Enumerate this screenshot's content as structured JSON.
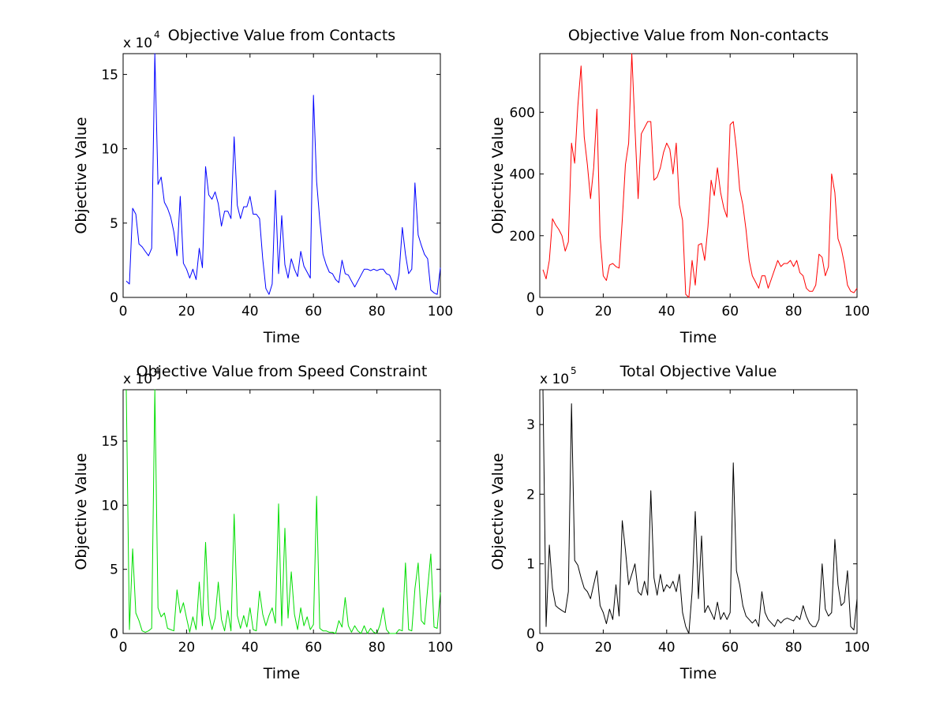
{
  "chart_data": [
    {
      "type": "line",
      "title": "Objective Value from Contacts",
      "xlabel": "Time",
      "ylabel": "Objective Value",
      "multiplier": {
        "prefix": "x 10",
        "exponent": "4"
      },
      "xlim": [
        0,
        100
      ],
      "ylim": [
        0,
        16.4
      ],
      "xticks": [
        0,
        20,
        40,
        60,
        80,
        100
      ],
      "xtick_labels": [
        "0",
        "20",
        "40",
        "60",
        "80",
        "100"
      ],
      "yticks": [
        0,
        5,
        10,
        15
      ],
      "ytick_labels": [
        "0",
        "5",
        "10",
        "15"
      ],
      "grid": false,
      "color": "#0000ff",
      "x": [
        1,
        2,
        3,
        4,
        5,
        6,
        7,
        8,
        9,
        10,
        11,
        12,
        13,
        14,
        15,
        16,
        17,
        18,
        19,
        20,
        21,
        22,
        23,
        24,
        25,
        26,
        27,
        28,
        29,
        30,
        31,
        32,
        33,
        34,
        35,
        36,
        37,
        38,
        39,
        40,
        41,
        42,
        43,
        44,
        45,
        46,
        47,
        48,
        49,
        50,
        51,
        52,
        53,
        54,
        55,
        56,
        57,
        58,
        59,
        60,
        61,
        62,
        63,
        64,
        65,
        66,
        67,
        68,
        69,
        70,
        71,
        72,
        73,
        74,
        75,
        76,
        77,
        78,
        79,
        80,
        81,
        82,
        83,
        84,
        85,
        86,
        87,
        88,
        89,
        90,
        91,
        92,
        93,
        94,
        95,
        96,
        97,
        98,
        99,
        100
      ],
      "values": [
        1.1,
        0.9,
        6.0,
        5.6,
        3.6,
        3.4,
        3.1,
        2.8,
        3.3,
        16.4,
        7.6,
        8.1,
        6.4,
        6.0,
        5.4,
        4.4,
        2.8,
        6.8,
        2.3,
        1.9,
        1.3,
        1.9,
        1.2,
        3.3,
        2.0,
        8.8,
        6.9,
        6.6,
        7.1,
        6.3,
        4.8,
        5.8,
        5.8,
        5.3,
        10.8,
        6.2,
        5.3,
        6.1,
        6.1,
        6.8,
        5.6,
        5.6,
        5.3,
        2.6,
        0.6,
        0.2,
        0.9,
        7.2,
        1.6,
        5.5,
        2.2,
        1.3,
        2.6,
        1.9,
        1.4,
        3.1,
        2.1,
        1.7,
        1.3,
        13.6,
        7.8,
        5.2,
        2.9,
        2.2,
        1.7,
        1.6,
        1.2,
        1.0,
        2.5,
        1.6,
        1.5,
        1.1,
        0.7,
        1.1,
        1.5,
        1.9,
        1.9,
        1.8,
        1.9,
        1.8,
        1.9,
        1.9,
        1.6,
        1.5,
        1.0,
        0.5,
        1.6,
        4.7,
        2.9,
        1.6,
        1.9,
        7.7,
        4.2,
        3.5,
        2.9,
        2.6,
        0.5,
        0.3,
        0.2,
        2.0
      ]
    },
    {
      "type": "line",
      "title": "Objective Value from Non-contacts",
      "xlabel": "Time",
      "ylabel": "Objective Value",
      "multiplier": null,
      "xlim": [
        0,
        100
      ],
      "ylim": [
        0,
        790
      ],
      "xticks": [
        0,
        20,
        40,
        60,
        80,
        100
      ],
      "xtick_labels": [
        "0",
        "20",
        "40",
        "60",
        "80",
        "100"
      ],
      "yticks": [
        0,
        200,
        400,
        600
      ],
      "ytick_labels": [
        "0",
        "200",
        "400",
        "600"
      ],
      "grid": false,
      "color": "#ff0000",
      "x": [
        1,
        2,
        3,
        4,
        5,
        6,
        7,
        8,
        9,
        10,
        11,
        12,
        13,
        14,
        15,
        16,
        17,
        18,
        19,
        20,
        21,
        22,
        23,
        24,
        25,
        26,
        27,
        28,
        29,
        30,
        31,
        32,
        33,
        34,
        35,
        36,
        37,
        38,
        39,
        40,
        41,
        42,
        43,
        44,
        45,
        46,
        47,
        48,
        49,
        50,
        51,
        52,
        53,
        54,
        55,
        56,
        57,
        58,
        59,
        60,
        61,
        62,
        63,
        64,
        65,
        66,
        67,
        68,
        69,
        70,
        71,
        72,
        73,
        74,
        75,
        76,
        77,
        78,
        79,
        80,
        81,
        82,
        83,
        84,
        85,
        86,
        87,
        88,
        89,
        90,
        91,
        92,
        93,
        94,
        95,
        96,
        97,
        98,
        99,
        100
      ],
      "values": [
        90,
        60,
        120,
        255,
        235,
        220,
        200,
        150,
        180,
        500,
        435,
        620,
        750,
        520,
        430,
        320,
        420,
        610,
        200,
        70,
        55,
        105,
        110,
        100,
        95,
        250,
        430,
        500,
        790,
        550,
        320,
        530,
        550,
        570,
        570,
        380,
        390,
        420,
        470,
        500,
        480,
        400,
        500,
        300,
        250,
        10,
        0,
        120,
        40,
        170,
        175,
        120,
        230,
        380,
        330,
        420,
        340,
        290,
        260,
        560,
        570,
        480,
        350,
        300,
        220,
        120,
        70,
        50,
        30,
        70,
        70,
        30,
        60,
        90,
        120,
        100,
        110,
        110,
        120,
        100,
        120,
        80,
        70,
        30,
        20,
        20,
        40,
        140,
        130,
        70,
        100,
        400,
        340,
        190,
        160,
        110,
        40,
        20,
        15,
        30
      ]
    },
    {
      "type": "line",
      "title": "Objective Value from Speed Constraint",
      "xlabel": "Time",
      "ylabel": "Objective Value",
      "multiplier": {
        "prefix": "x 10",
        "exponent": "4"
      },
      "xlim": [
        0,
        100
      ],
      "ylim": [
        0,
        19
      ],
      "xticks": [
        0,
        20,
        40,
        60,
        80,
        100
      ],
      "xtick_labels": [
        "0",
        "20",
        "40",
        "60",
        "80",
        "100"
      ],
      "yticks": [
        0,
        5,
        10,
        15
      ],
      "ytick_labels": [
        "0",
        "5",
        "10",
        "15"
      ],
      "grid": false,
      "color": "#00dd00",
      "x": [
        1,
        2,
        3,
        4,
        5,
        6,
        7,
        8,
        9,
        10,
        11,
        12,
        13,
        14,
        15,
        16,
        17,
        18,
        19,
        20,
        21,
        22,
        23,
        24,
        25,
        26,
        27,
        28,
        29,
        30,
        31,
        32,
        33,
        34,
        35,
        36,
        37,
        38,
        39,
        40,
        41,
        42,
        43,
        44,
        45,
        46,
        47,
        48,
        49,
        50,
        51,
        52,
        53,
        54,
        55,
        56,
        57,
        58,
        59,
        60,
        61,
        62,
        63,
        64,
        65,
        66,
        67,
        68,
        69,
        70,
        71,
        72,
        73,
        74,
        75,
        76,
        77,
        78,
        79,
        80,
        81,
        82,
        83,
        84,
        85,
        86,
        87,
        88,
        89,
        90,
        91,
        92,
        93,
        94,
        95,
        96,
        97,
        98,
        99,
        100
      ],
      "values": [
        19,
        0.3,
        6.6,
        1.6,
        1.0,
        0.2,
        0.1,
        0.2,
        0.4,
        19,
        2.0,
        1.3,
        1.6,
        0.4,
        0.3,
        0.2,
        3.4,
        1.6,
        2.4,
        1.2,
        0.1,
        1.3,
        0.3,
        4.0,
        0.6,
        7.1,
        1.5,
        0.3,
        1.2,
        4.0,
        1.1,
        0.2,
        1.8,
        0.2,
        9.3,
        1.4,
        0.4,
        1.4,
        0.5,
        2.0,
        0.3,
        0.2,
        3.3,
        1.5,
        0.6,
        1.4,
        2.0,
        0.8,
        10.1,
        0.6,
        8.2,
        1.2,
        4.8,
        1.5,
        0.3,
        2.0,
        0.6,
        1.3,
        0.3,
        0.7,
        10.7,
        0.4,
        0.2,
        0.2,
        0.1,
        0.1,
        0.0,
        1.0,
        0.5,
        2.8,
        0.6,
        0.1,
        0.6,
        0.2,
        0.0,
        0.6,
        0.0,
        0.4,
        0.1,
        0.0,
        0.7,
        2.0,
        0.3,
        0.0,
        0.0,
        0.0,
        0.3,
        0.2,
        5.5,
        0.3,
        0.2,
        3.5,
        5.5,
        1.0,
        0.7,
        3.5,
        6.2,
        0.5,
        0.4,
        3.2
      ]
    },
    {
      "type": "line",
      "title": "Total Objective Value",
      "xlabel": "Time",
      "ylabel": "Objective Value",
      "multiplier": {
        "prefix": "x 10",
        "exponent": "5"
      },
      "xlim": [
        0,
        100
      ],
      "ylim": [
        0,
        3.5
      ],
      "xticks": [
        0,
        20,
        40,
        60,
        80,
        100
      ],
      "xtick_labels": [
        "0",
        "20",
        "40",
        "60",
        "80",
        "100"
      ],
      "yticks": [
        0,
        1,
        2,
        3
      ],
      "ytick_labels": [
        "0",
        "1",
        "2",
        "3"
      ],
      "grid": false,
      "color": "#000000",
      "x": [
        1,
        2,
        3,
        4,
        5,
        6,
        7,
        8,
        9,
        10,
        11,
        12,
        13,
        14,
        15,
        16,
        17,
        18,
        19,
        20,
        21,
        22,
        23,
        24,
        25,
        26,
        27,
        28,
        29,
        30,
        31,
        32,
        33,
        34,
        35,
        36,
        37,
        38,
        39,
        40,
        41,
        42,
        43,
        44,
        45,
        46,
        47,
        48,
        49,
        50,
        51,
        52,
        53,
        54,
        55,
        56,
        57,
        58,
        59,
        60,
        61,
        62,
        63,
        64,
        65,
        66,
        67,
        68,
        69,
        70,
        71,
        72,
        73,
        74,
        75,
        76,
        77,
        78,
        79,
        80,
        81,
        82,
        83,
        84,
        85,
        86,
        87,
        88,
        89,
        90,
        91,
        92,
        93,
        94,
        95,
        96,
        97,
        98,
        99,
        100
      ],
      "values": [
        3.5,
        0.1,
        1.27,
        0.65,
        0.4,
        0.36,
        0.33,
        0.3,
        0.6,
        3.3,
        1.05,
        0.98,
        0.8,
        0.65,
        0.6,
        0.5,
        0.7,
        0.9,
        0.4,
        0.3,
        0.14,
        0.35,
        0.2,
        0.7,
        0.25,
        1.62,
        1.2,
        0.7,
        0.85,
        1.0,
        0.6,
        0.55,
        0.75,
        0.55,
        2.05,
        0.8,
        0.55,
        0.85,
        0.6,
        0.7,
        0.65,
        0.75,
        0.6,
        0.85,
        0.3,
        0.1,
        0.0,
        0.6,
        1.75,
        0.5,
        1.4,
        0.3,
        0.4,
        0.3,
        0.2,
        0.45,
        0.2,
        0.3,
        0.2,
        0.3,
        2.45,
        0.9,
        0.7,
        0.4,
        0.25,
        0.2,
        0.15,
        0.2,
        0.1,
        0.6,
        0.3,
        0.2,
        0.15,
        0.1,
        0.2,
        0.15,
        0.2,
        0.22,
        0.2,
        0.18,
        0.25,
        0.2,
        0.4,
        0.25,
        0.15,
        0.1,
        0.1,
        0.2,
        1.0,
        0.35,
        0.25,
        0.3,
        1.35,
        0.7,
        0.4,
        0.45,
        0.9,
        0.1,
        0.05,
        0.5
      ]
    }
  ]
}
